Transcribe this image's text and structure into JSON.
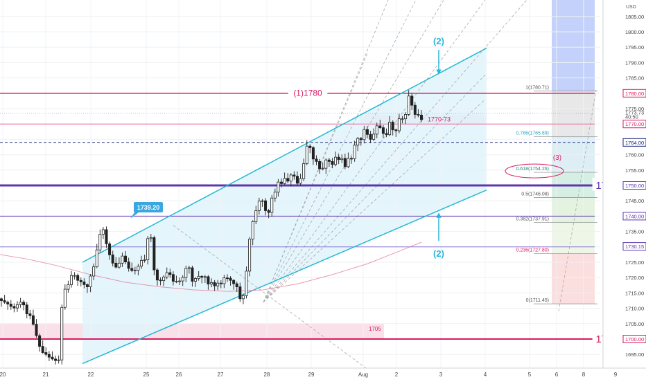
{
  "chart_data": {
    "type": "candlestick",
    "currency": "USD",
    "y_axis": {
      "min": 1691,
      "max": 1809,
      "ticks": [
        1695,
        1700,
        1705,
        1710,
        1715,
        1720,
        1725,
        1730,
        1735,
        1740,
        1745,
        1750,
        1755,
        1760,
        1765,
        1770,
        1775,
        1780,
        1785,
        1790,
        1795,
        1800,
        1805
      ],
      "tick_labels": [
        "1695.00",
        "",
        "1705.00",
        "1710.00",
        "1715.00",
        "1720.00",
        "1725.00",
        "",
        "1735.00",
        "",
        "1745.00",
        "",
        "1755.00",
        "1760.00",
        "",
        "",
        "1775.00",
        "",
        "1785.00",
        "1790.00",
        "1795.00",
        "1800.00",
        "1805.00"
      ],
      "price_tags": [
        {
          "text": "1780.00",
          "value": 1780,
          "color": "#d81b60"
        },
        {
          "text": "1773.73",
          "value": 1773.73,
          "color": "none"
        },
        {
          "text": "40:50",
          "value": 1772.4,
          "color": "none"
        },
        {
          "text": "1770.00",
          "value": 1770,
          "color": "#d81b60"
        },
        {
          "text": "1764.00",
          "value": 1764,
          "color": "#1a237e"
        },
        {
          "text": "1750.00",
          "value": 1750,
          "color": "#5e35b1"
        },
        {
          "text": "1740.00",
          "value": 1740,
          "color": "#5e35b1"
        },
        {
          "text": "1730.15",
          "value": 1730.15,
          "color": "#5e35b1"
        },
        {
          "text": "1700.00",
          "value": 1700,
          "color": "#d81b60"
        }
      ]
    },
    "x_axis": {
      "ticks": [
        "20",
        "21",
        "22",
        "25",
        "26",
        "27",
        "28",
        "29",
        "Aug",
        "2",
        "3",
        "4",
        "5",
        "6",
        "8",
        "9"
      ]
    },
    "horizontal_levels": [
      {
        "value": 1780,
        "label": "(1)1780",
        "color": "#d81b60"
      },
      {
        "value": 1770,
        "label": "1770",
        "color": "#d81b60"
      },
      {
        "value": 1764,
        "label": "",
        "color": "#1a237e"
      },
      {
        "value": 1750,
        "label": "1750",
        "color": "#5e35b1"
      },
      {
        "value": 1740,
        "label": "1740",
        "color": "#5e35b1"
      },
      {
        "value": 1730,
        "label": "1730",
        "color": "#5e35b1"
      },
      {
        "value": 1700,
        "label": "1700",
        "color": "#d81b60"
      }
    ],
    "zones": [
      {
        "label": "1770-73",
        "from": 1770,
        "to": 1773
      },
      {
        "label": "1705",
        "from": 1700,
        "to": 1705
      }
    ],
    "annotations": [
      {
        "text": "1739.20",
        "kind": "high-callout",
        "value": 1739.2
      },
      {
        "text": "(2)",
        "kind": "channel-top"
      },
      {
        "text": "(2)",
        "kind": "channel-bottom"
      },
      {
        "text": "(3)",
        "kind": "fib-target"
      }
    ],
    "fibonacci": [
      {
        "ratio": "1",
        "value": 1780.71,
        "label": "1(1780.71)"
      },
      {
        "ratio": "0.786",
        "value": 1765.89,
        "label": "0.786(1765.89)"
      },
      {
        "ratio": "0.618",
        "value": 1754.26,
        "label": "0.618(1754.26)"
      },
      {
        "ratio": "0.5",
        "value": 1746.08,
        "label": "0.5(1746.08)"
      },
      {
        "ratio": "0.382",
        "value": 1737.91,
        "label": "0.382(1737.91)"
      },
      {
        "ratio": "0.236",
        "value": 1727.8,
        "label": "0.236(1727.80)"
      },
      {
        "ratio": "0",
        "value": 1711.45,
        "label": "0(1711.45)"
      }
    ],
    "channel": {
      "upper": [
        [
          1746.4,
          1725.0
        ],
        [
          1794.7,
          1750.0
        ]
      ],
      "lower": [
        [
          1692.0,
          1725.0
        ],
        [
          1748.5,
          1750.0
        ]
      ]
    },
    "price_path": [
      1712.5,
      1712.0,
      1711.4,
      1710.6,
      1710.1,
      1711.2,
      1712.0,
      1711.1,
      1708.2,
      1707.6,
      1704.8,
      1701.1,
      1697.6,
      1695.6,
      1695.0,
      1694.1,
      1693.5,
      1693.0,
      1693.2,
      1710.3,
      1716.2,
      1717.7,
      1720.7,
      1720.7,
      1719.1,
      1718.6,
      1717.7,
      1717.0,
      1720.5,
      1723.5,
      1729.0,
      1734.1,
      1735.6,
      1731.0,
      1727.4,
      1724.7,
      1723.4,
      1724.7,
      1727.0,
      1725.1,
      1723.0,
      1722.3,
      1722.4,
      1723.7,
      1725.6,
      1725.8,
      1732.7,
      1733.0,
      1722.5,
      1719.2,
      1719.0,
      1720.2,
      1721.6,
      1721.0,
      1718.8,
      1718.8,
      1718.9,
      1720.0,
      1723.0,
      1723.2,
      1718.8,
      1719.7,
      1720.4,
      1720.1,
      1720.3,
      1717.9,
      1718.4,
      1717.3,
      1718.2,
      1718.0,
      1719.9,
      1719.8,
      1719.1,
      1718.0,
      1717.0,
      1713.1,
      1714.1,
      1722.1,
      1732.5,
      1738.2,
      1741.8,
      1744.9,
      1745.0,
      1741.8,
      1741.2,
      1745.9,
      1747.8,
      1751.1,
      1750.6,
      1752.3,
      1751.4,
      1753.4,
      1753.0,
      1750.7,
      1752.2,
      1757.1,
      1762.8,
      1762.3,
      1758.6,
      1757.8,
      1755.4,
      1755.6,
      1758.3,
      1757.8,
      1756.8,
      1759.2,
      1758.4,
      1758.8,
      1756.1,
      1758.8,
      1758.7,
      1763.1,
      1765.3,
      1764.9,
      1768.2,
      1766.6,
      1765.0,
      1766.7,
      1769.4,
      1768.8,
      1766.9,
      1766.5,
      1770.6,
      1768.1,
      1767.8,
      1771.7,
      1771.7,
      1773.1,
      1779.1,
      1776.1,
      1773.1,
      1772.9,
      1771.4
    ]
  }
}
